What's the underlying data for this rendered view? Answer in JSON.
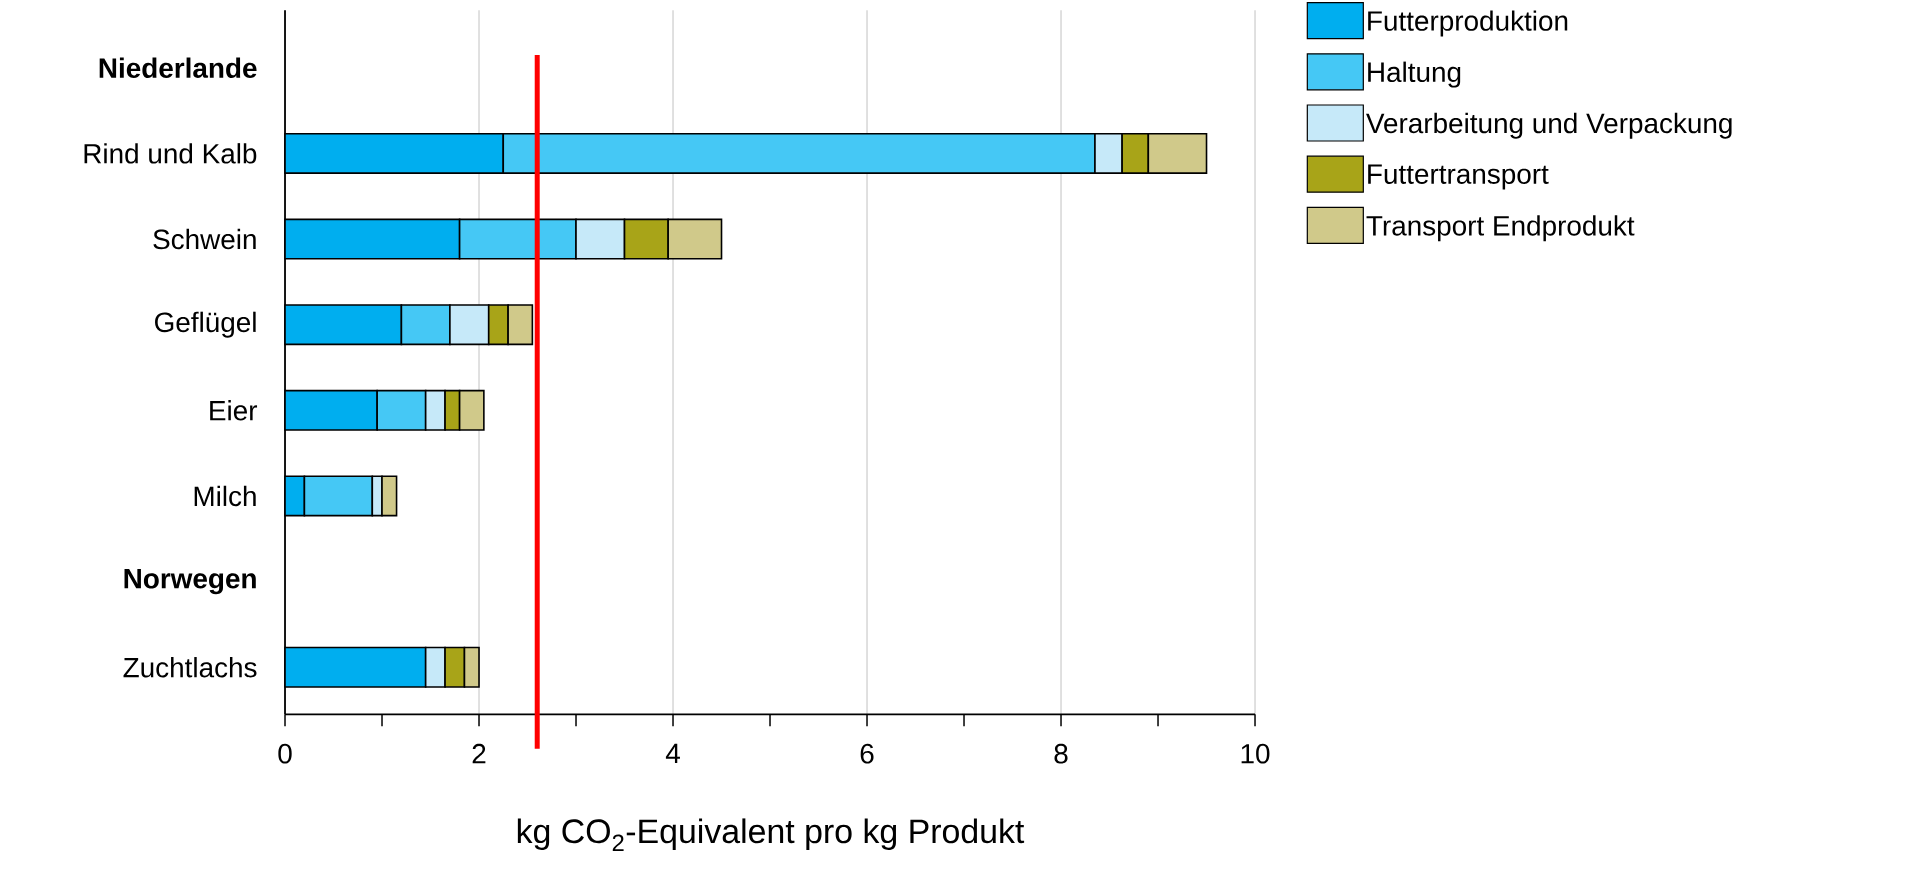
{
  "chart_data": {
    "type": "bar",
    "orientation": "horizontal",
    "stacked": true,
    "categories": [
      "**Niederlande**",
      "Rind und Kalb",
      "Schwein",
      "Geflügel",
      "Eier",
      "Milch",
      "**Norwegen**",
      "Zuchtlachs"
    ],
    "series": [
      {
        "name": "Futterproduktion",
        "color": "#00aeef",
        "values": [
          null,
          2.25,
          1.8,
          1.2,
          0.95,
          0.2,
          null,
          1.45
        ]
      },
      {
        "name": "Haltung",
        "color": "#45c8f5",
        "values": [
          null,
          6.1,
          1.2,
          0.5,
          0.5,
          0.7,
          null,
          null
        ]
      },
      {
        "name": "Verarbeitung und Verpackung",
        "color": "#c6e9f9",
        "values": [
          null,
          0.28,
          0.5,
          0.4,
          0.2,
          0.1,
          null,
          0.2
        ]
      },
      {
        "name": "Futtertransport",
        "color": "#a8a418",
        "values": [
          null,
          0.27,
          0.45,
          0.2,
          0.15,
          null,
          null,
          0.2
        ]
      },
      {
        "name": "Transport Endprodukt",
        "color": "#d0c98a",
        "values": [
          null,
          0.6,
          0.55,
          0.25,
          0.25,
          0.15,
          null,
          0.15
        ]
      }
    ],
    "xlabel": "kg CO$_{2}$-Equivalent pro kg Produkt",
    "xlim": [
      0,
      10
    ],
    "xticks": [
      0,
      {
        "value": 1,
        "label": null
      },
      2,
      {
        "value": 3,
        "label": null
      },
      4,
      {
        "value": 5,
        "label": null
      },
      6,
      {
        "value": 7,
        "label": null
      },
      8,
      {
        "value": 9,
        "label": null
      },
      10
    ],
    "grid": "x",
    "legend": "top right",
    "ref_lines": [
      {
        "axis": "x",
        "value": 2.6,
        "color": "#ff0000"
      }
    ]
  }
}
